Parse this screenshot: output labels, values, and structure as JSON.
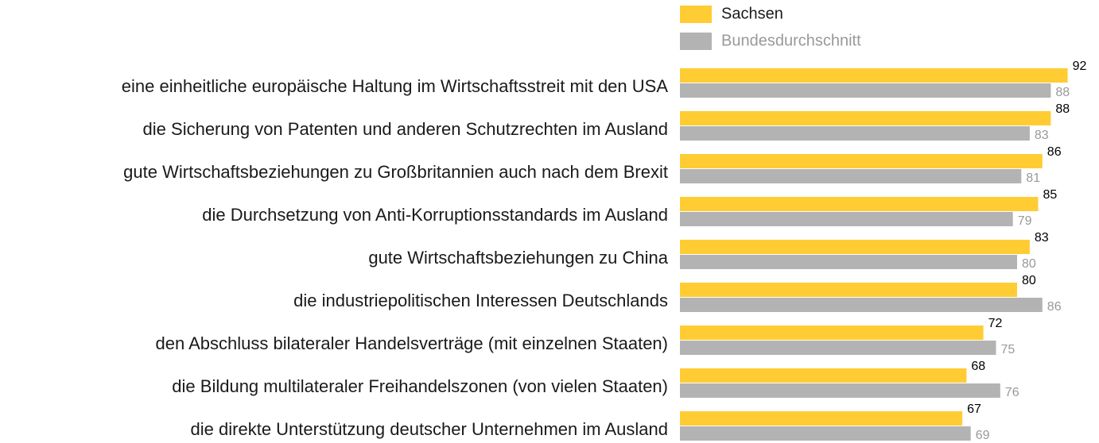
{
  "chart_data": {
    "type": "bar",
    "orientation": "horizontal",
    "categories": [
      "eine einheitliche europäische Haltung im Wirtschaftsstreit mit den USA",
      "die Sicherung von Patenten und anderen Schutzrechten im Ausland",
      "gute Wirtschaftsbeziehungen zu Großbritannien auch nach dem Brexit",
      "die Durchsetzung von Anti-Korruptionsstandards im Ausland",
      "gute Wirtschaftsbeziehungen zu China",
      "die industriepolitischen Interessen Deutschlands",
      "den Abschluss bilateraler Handelsverträge (mit einzelnen Staaten)",
      "die Bildung multilateraler Freihandelszonen (von vielen Staaten)",
      "die direkte Unterstützung deutscher Unternehmen im Ausland"
    ],
    "series": [
      {
        "name": "Sachsen",
        "color": "#ffcc33",
        "label_color": "#000000",
        "values": [
          92,
          88,
          86,
          85,
          83,
          80,
          72,
          68,
          67
        ]
      },
      {
        "name": "Bundesdurchschnitt",
        "color": "#b3b3b3",
        "label_color": "#999999",
        "values": [
          88,
          83,
          81,
          79,
          80,
          86,
          75,
          76,
          69
        ]
      }
    ],
    "xlim": [
      0,
      100
    ],
    "legend": "top-right"
  }
}
